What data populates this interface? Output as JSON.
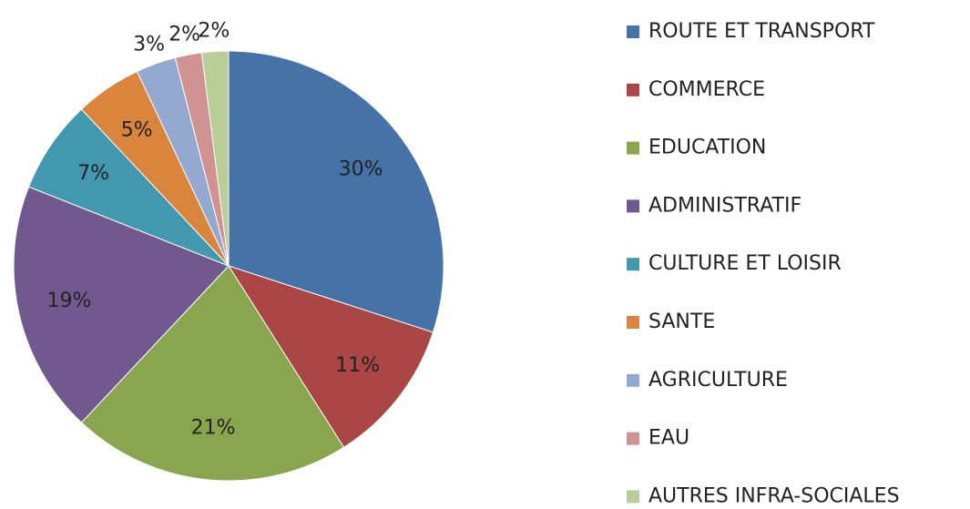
{
  "chart_data": {
    "type": "pie",
    "categories": [
      "ROUTE ET TRANSPORT",
      "COMMERCE",
      "EDUCATION",
      "ADMINISTRATIF",
      "CULTURE ET LOISIR",
      "SANTE",
      "AGRICULTURE",
      "EAU",
      "AUTRES INFRA-SOCIALES"
    ],
    "values": [
      30,
      11,
      21,
      19,
      7,
      5,
      3,
      2,
      2
    ],
    "value_labels": [
      "30%",
      "11%",
      "21%",
      "19%",
      "7%",
      "5%",
      "3%",
      "2%",
      "2%"
    ],
    "colors": [
      "#4572a7",
      "#aa4643",
      "#89a54e",
      "#71588f",
      "#4198af",
      "#db843d",
      "#93a9cf",
      "#d19392",
      "#b9cd96"
    ],
    "legend": "right"
  }
}
